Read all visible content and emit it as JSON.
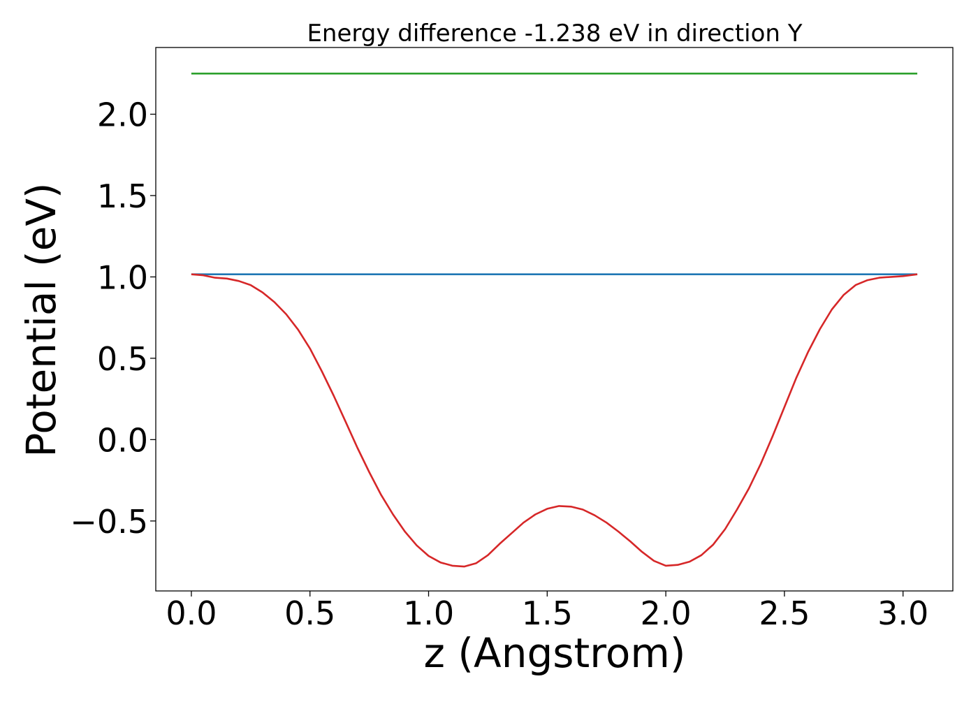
{
  "chart_data": {
    "type": "line",
    "title": "Energy difference -1.238 eV in direction Y",
    "xlabel": "z (Angstrom)",
    "ylabel": "Potential (eV)",
    "xlim": [
      -0.15,
      3.21
    ],
    "ylim": [
      -0.93,
      2.41
    ],
    "xticks": [
      0.0,
      0.5,
      1.0,
      1.5,
      2.0,
      2.5,
      3.0
    ],
    "xtick_labels": [
      "0.0",
      "0.5",
      "1.0",
      "1.5",
      "2.0",
      "2.5",
      "3.0"
    ],
    "yticks": [
      -0.5,
      0.0,
      0.5,
      1.0,
      1.5,
      2.0
    ],
    "ytick_labels": [
      "−0.5",
      "0.0",
      "0.5",
      "1.0",
      "1.5",
      "2.0"
    ],
    "grid": false,
    "legend": "none",
    "series": [
      {
        "color": "#2ca02c",
        "x": [
          0.0,
          3.06
        ],
        "y": [
          2.25,
          2.25
        ]
      },
      {
        "color": "#1f77b4",
        "x": [
          0.0,
          3.06
        ],
        "y": [
          1.016,
          1.016
        ]
      },
      {
        "color": "#d62728",
        "x": [
          0.0,
          0.05,
          0.1,
          0.15,
          0.2,
          0.25,
          0.3,
          0.35,
          0.4,
          0.45,
          0.5,
          0.55,
          0.6,
          0.65,
          0.7,
          0.75,
          0.8,
          0.85,
          0.9,
          0.95,
          1.0,
          1.05,
          1.1,
          1.15,
          1.2,
          1.25,
          1.3,
          1.35,
          1.4,
          1.45,
          1.5,
          1.55,
          1.6,
          1.65,
          1.7,
          1.75,
          1.8,
          1.85,
          1.9,
          1.95,
          2.0,
          2.05,
          2.1,
          2.15,
          2.2,
          2.25,
          2.3,
          2.35,
          2.4,
          2.45,
          2.5,
          2.55,
          2.6,
          2.65,
          2.7,
          2.75,
          2.8,
          2.85,
          2.9,
          2.95,
          3.0,
          3.06
        ],
        "y": [
          1.016,
          1.01,
          0.995,
          0.99,
          0.975,
          0.95,
          0.905,
          0.845,
          0.77,
          0.675,
          0.56,
          0.42,
          0.27,
          0.11,
          -0.05,
          -0.2,
          -0.34,
          -0.46,
          -0.565,
          -0.65,
          -0.715,
          -0.755,
          -0.775,
          -0.78,
          -0.76,
          -0.71,
          -0.64,
          -0.575,
          -0.51,
          -0.46,
          -0.425,
          -0.408,
          -0.412,
          -0.43,
          -0.465,
          -0.51,
          -0.565,
          -0.625,
          -0.69,
          -0.745,
          -0.775,
          -0.77,
          -0.75,
          -0.71,
          -0.645,
          -0.55,
          -0.43,
          -0.3,
          -0.15,
          0.02,
          0.2,
          0.38,
          0.54,
          0.68,
          0.8,
          0.89,
          0.95,
          0.98,
          0.995,
          1.0,
          1.005,
          1.016
        ]
      }
    ]
  }
}
